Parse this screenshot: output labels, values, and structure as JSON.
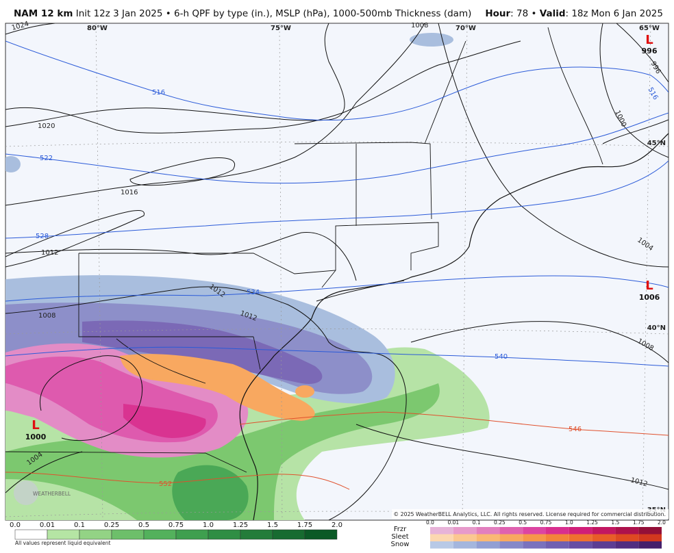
{
  "header": {
    "model": "NAM 12 km",
    "description": "Init 12z 3 Jan 2025 • 6-h QPF by type (in.), MSLP (hPa), 1000-500mb Thickness (dam)",
    "hour_label": "Hour",
    "hour_value": ": 78 •",
    "valid_label": "Valid",
    "valid_value": ": 18z Mon 6 Jan 2025"
  },
  "map": {
    "longitudes": [
      "80°W",
      "75°W",
      "70°W",
      "65°W"
    ],
    "latitudes": [
      "45°N",
      "40°N",
      "35°N"
    ],
    "isobar_labels": [
      "1024",
      "1020",
      "1016",
      "1012",
      "1008",
      "1012",
      "1012",
      "1008",
      "1004",
      "1000",
      "996",
      "1004",
      "1008",
      "1012"
    ],
    "thickness_labels": [
      "516",
      "522",
      "528",
      "534",
      "540",
      "546",
      "552",
      "516"
    ],
    "lows": [
      {
        "symbol": "L",
        "pressure": "996"
      },
      {
        "symbol": "L",
        "pressure": "1006"
      },
      {
        "symbol": "L",
        "pressure": "1000"
      }
    ],
    "logo": "WEATHERBELL",
    "copyright": "© 2025 WeatherBELL Analytics, LLC. All rights reserved. License required for commercial distribution."
  },
  "legend": {
    "rain_ticks": [
      "0.0",
      "0.01",
      "0.1",
      "0.25",
      "0.5",
      "0.75",
      "1.0",
      "1.25",
      "1.5",
      "1.75",
      "2.0"
    ],
    "note": "All values represent liquid equivalent",
    "ptype_labels": [
      "Frzr",
      "Sleet",
      "Snow"
    ],
    "ptype_ticks": [
      "0.0",
      "0.01",
      "0.1",
      "0.25",
      "0.5",
      "0.75",
      "1.0",
      "1.25",
      "1.5",
      "1.75",
      "2.0"
    ]
  }
}
